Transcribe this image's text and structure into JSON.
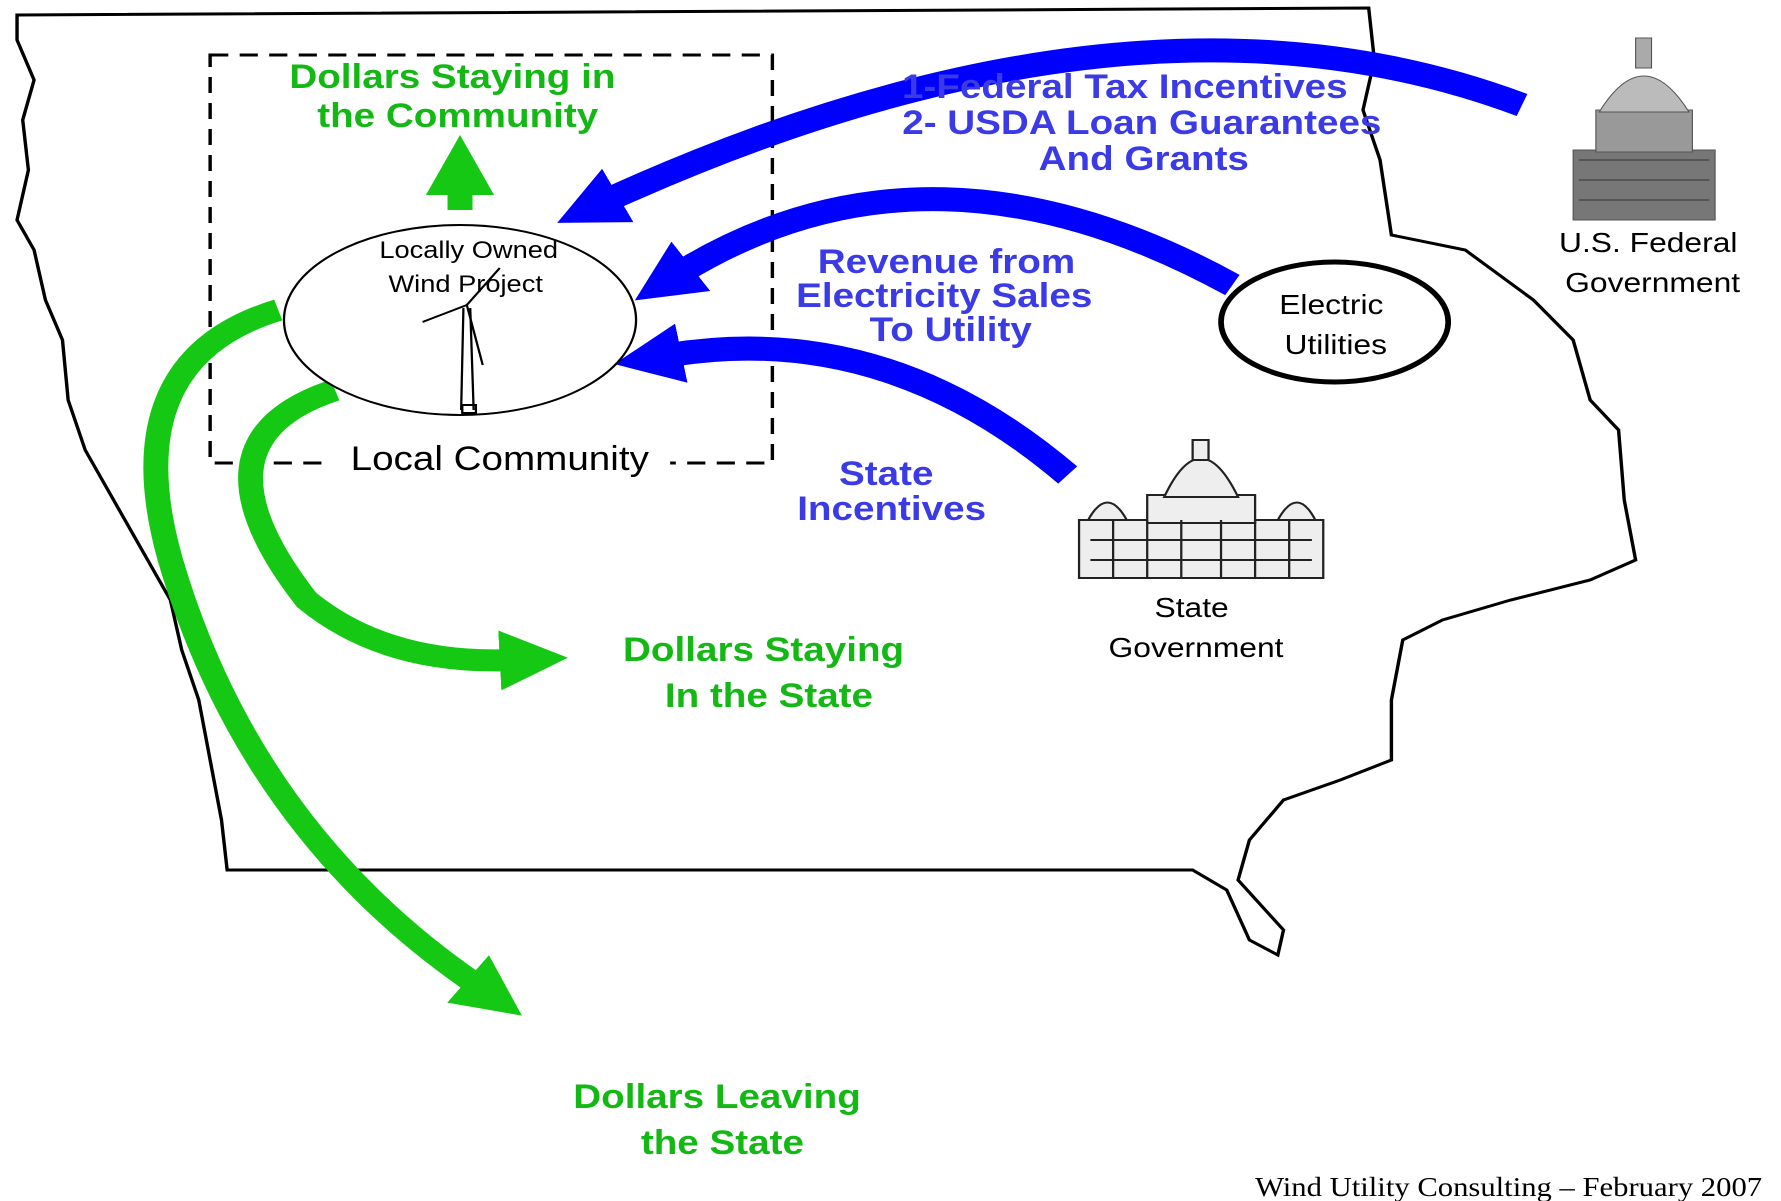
{
  "labels": {
    "community_dollars": [
      "Dollars Staying in",
      "the Community"
    ],
    "wind_project": [
      "Locally Owned",
      "Wind Project"
    ],
    "local_community": "Local Community",
    "federal_incentives": [
      "1-Federal Tax Incentives",
      "2- USDA Loan Guarantees",
      "And Grants"
    ],
    "electricity_revenue": [
      "Revenue from",
      "Electricity Sales",
      "To Utility"
    ],
    "state_incentives": [
      "State",
      "Incentives"
    ],
    "electric_utilities": [
      "Electric",
      "Utilities"
    ],
    "federal_government": [
      "U.S. Federal",
      "Government"
    ],
    "state_government": [
      "State",
      "Government"
    ],
    "state_dollars": [
      "Dollars Staying",
      "In the State"
    ],
    "leaving_dollars": [
      "Dollars Leaving",
      "the State"
    ],
    "footer": "Wind Utility Consulting – February 2007"
  }
}
